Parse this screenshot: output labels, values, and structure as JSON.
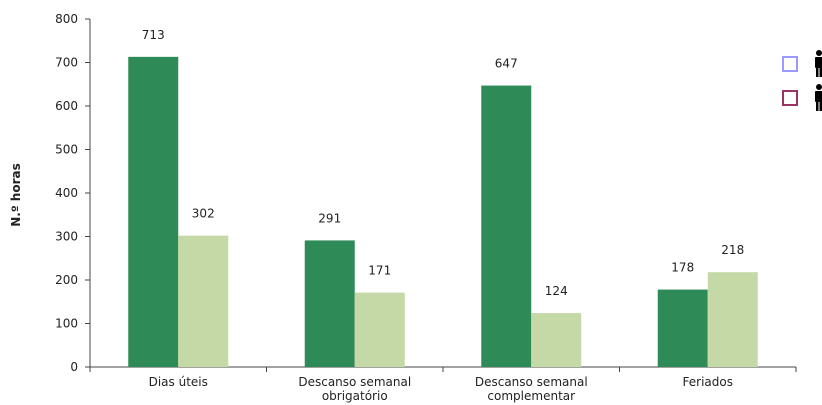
{
  "chart_data": {
    "type": "bar",
    "ylabel": "N.º horas",
    "ylim": [
      0,
      800
    ],
    "yticks": [
      0,
      100,
      200,
      300,
      400,
      500,
      600,
      700,
      800
    ],
    "categories": [
      [
        "Dias úteis"
      ],
      [
        "Descanso semanal",
        "obrigatório"
      ],
      [
        "Descanso semanal",
        "complementar"
      ],
      [
        "Feriados"
      ]
    ],
    "series": [
      {
        "color": "#2e8b57",
        "values": [
          713,
          291,
          647,
          178
        ],
        "legend_marker_color": "#9999ff",
        "legend_icon": "man-icon"
      },
      {
        "color": "#c4d9a6",
        "values": [
          302,
          171,
          124,
          218
        ],
        "legend_marker_color": "#993366",
        "legend_icon": "man-icon"
      }
    ],
    "grid": false,
    "legend_position": "right"
  }
}
